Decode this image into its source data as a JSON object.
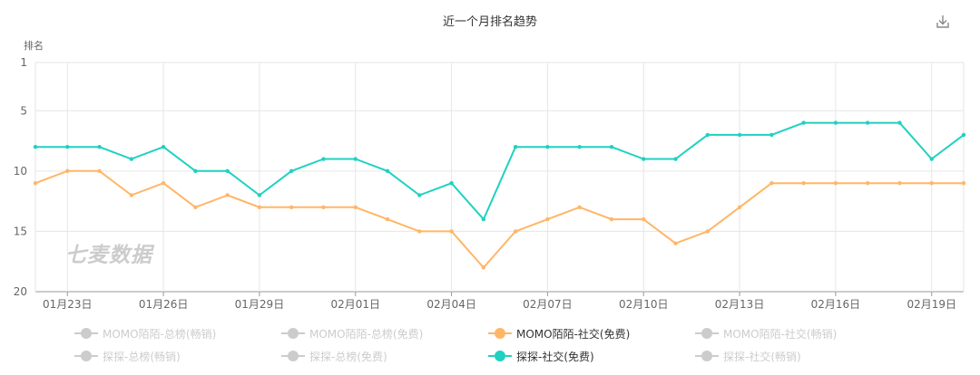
{
  "chart_data": {
    "type": "line",
    "title": "近一个月排名趋势",
    "ylabel": "排名",
    "ylim": [
      1,
      20
    ],
    "y_inverted": true,
    "y_ticks": [
      1,
      5,
      10,
      15,
      20
    ],
    "x": [
      "01月22日",
      "01月23日",
      "01月24日",
      "01月25日",
      "01月26日",
      "01月27日",
      "01月28日",
      "01月29日",
      "01月30日",
      "01月31日",
      "02月01日",
      "02月02日",
      "02月03日",
      "02月04日",
      "02月05日",
      "02月06日",
      "02月07日",
      "02月08日",
      "02月09日",
      "02月10日",
      "02月11日",
      "02月12日",
      "02月13日",
      "02月14日",
      "02月15日",
      "02月16日",
      "02月17日",
      "02月18日",
      "02月19日",
      "02月20日"
    ],
    "x_tick_labels": [
      "01月23日",
      "01月26日",
      "01月29日",
      "02月01日",
      "02月04日",
      "02月07日",
      "02月10日",
      "02月13日",
      "02月16日",
      "02月19日"
    ],
    "grid": true,
    "legend_position": "bottom",
    "series": [
      {
        "name": "MOMO陌陌-社交(免费)",
        "color": "#ffb667",
        "values": [
          11,
          10,
          10,
          12,
          11,
          13,
          12,
          13,
          13,
          13,
          13,
          14,
          15,
          15,
          18,
          15,
          14,
          13,
          14,
          14,
          16,
          15,
          13,
          11,
          11,
          11,
          11,
          11,
          11,
          11
        ]
      },
      {
        "name": "探探-社交(免费)",
        "color": "#1fd1c1",
        "values": [
          8,
          8,
          8,
          9,
          8,
          10,
          10,
          12,
          10,
          9,
          9,
          10,
          12,
          11,
          14,
          8,
          8,
          8,
          8,
          9,
          9,
          7,
          7,
          7,
          6,
          6,
          6,
          6,
          9,
          7
        ]
      }
    ],
    "legend": [
      {
        "name": "MOMO陌陌-总榜(畅销)",
        "active": false
      },
      {
        "name": "MOMO陌陌-总榜(免费)",
        "active": false
      },
      {
        "name": "MOMO陌陌-社交(免费)",
        "active": true,
        "color": "#ffb667"
      },
      {
        "name": "MOMO陌陌-社交(畅销)",
        "active": false
      },
      {
        "name": "探探-总榜(畅销)",
        "active": false
      },
      {
        "name": "探探-总榜(免费)",
        "active": false
      },
      {
        "name": "探探-社交(免费)",
        "active": true,
        "color": "#1fd1c1"
      },
      {
        "name": "探探-社交(畅销)",
        "active": false
      }
    ],
    "watermark": "七麦数据"
  },
  "colors": {
    "inactive": "#cccccc",
    "active_text": "#333333",
    "grid": "#e6e6e6",
    "axis": "#999999",
    "label": "#666666"
  },
  "icons": {
    "download": "download-icon"
  }
}
